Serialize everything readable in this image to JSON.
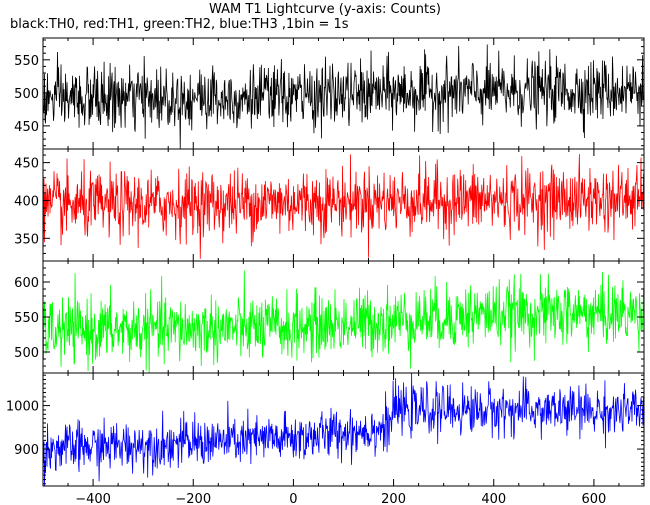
{
  "chart_data": {
    "type": "line",
    "title": "WAM T1 Lightcurve (y-axis: Counts)",
    "subtitle": "black:TH0, red:TH1, green:TH2, blue:TH3 ,1bin = 1s",
    "x_range": [
      -500,
      700
    ],
    "x_ticks": [
      -400,
      -200,
      0,
      200,
      400,
      600
    ],
    "x_tick_labels": [
      "−400",
      "−200",
      "0",
      "200",
      "400",
      "600"
    ],
    "panels": [
      {
        "name": "TH0",
        "color": "#000000",
        "ylim": [
          415,
          583
        ],
        "y_ticks": [
          450,
          500,
          550
        ],
        "y_tick_labels": [
          "450",
          "500",
          "550"
        ],
        "trend": [
          [
            -500,
            490
          ],
          [
            0,
            495
          ],
          [
            200,
            500
          ],
          [
            700,
            505
          ]
        ],
        "noise": 24
      },
      {
        "name": "TH1",
        "color": "#ff0000",
        "ylim": [
          320,
          468
        ],
        "y_ticks": [
          350,
          400,
          450
        ],
        "y_tick_labels": [
          "350",
          "400",
          "450"
        ],
        "trend": [
          [
            -500,
            392
          ],
          [
            0,
            398
          ],
          [
            700,
            402
          ]
        ],
        "noise": 22
      },
      {
        "name": "TH2",
        "color": "#00ff00",
        "ylim": [
          470,
          630
        ],
        "y_ticks": [
          500,
          550,
          600
        ],
        "y_tick_labels": [
          "500",
          "550",
          "600"
        ],
        "trend": [
          [
            -500,
            530
          ],
          [
            0,
            535
          ],
          [
            200,
            545
          ],
          [
            400,
            555
          ],
          [
            700,
            555
          ]
        ],
        "noise": 23
      },
      {
        "name": "TH3",
        "color": "#0000ff",
        "ylim": [
          815,
          1075
        ],
        "y_ticks": [
          900,
          1000
        ],
        "y_tick_labels": [
          "900",
          "1000"
        ],
        "trend": [
          [
            -500,
            900
          ],
          [
            -200,
            915
          ],
          [
            0,
            925
          ],
          [
            190,
            950
          ],
          [
            200,
            990
          ],
          [
            430,
            990
          ],
          [
            700,
            985
          ]
        ],
        "noise": 28
      }
    ]
  }
}
